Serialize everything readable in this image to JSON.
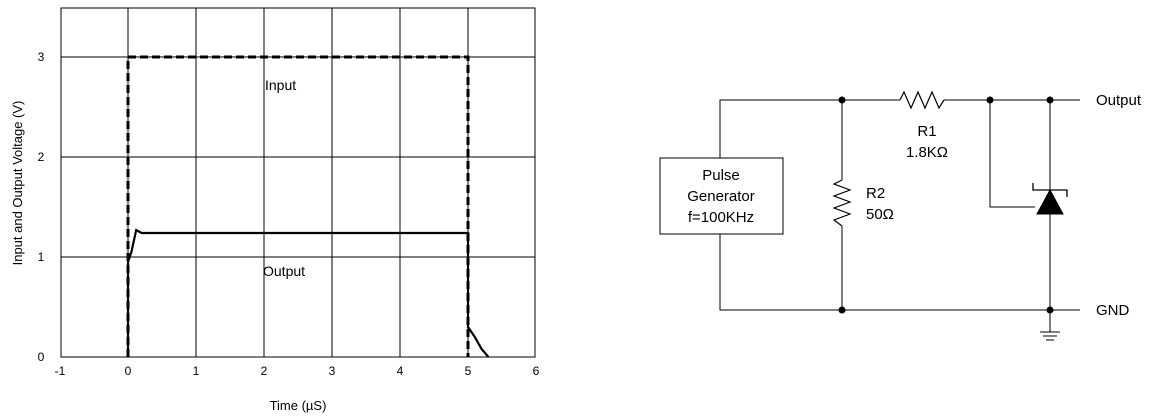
{
  "chart_data": {
    "type": "line",
    "title": "",
    "xlabel": "Time (µS)",
    "ylabel": "Input and Output Voltage (V)",
    "xlim": [
      -1,
      6
    ],
    "ylim": [
      0,
      3.5
    ],
    "xticks": [
      "-1",
      "0",
      "1",
      "2",
      "3",
      "4",
      "5",
      "6"
    ],
    "yticks": [
      "0",
      "1",
      "2",
      "3"
    ],
    "grid": true,
    "series": [
      {
        "name": "Input",
        "style": "dashed",
        "x": [
          0,
          0,
          5,
          5
        ],
        "y": [
          0,
          3,
          3,
          0
        ]
      },
      {
        "name": "Output",
        "style": "solid",
        "x": [
          0,
          0,
          0.05,
          0.12,
          0.2,
          5,
          5,
          5.1,
          5.2,
          5.3
        ],
        "y": [
          0,
          0.95,
          1.05,
          1.27,
          1.24,
          1.24,
          0.3,
          0.2,
          0.08,
          0
        ]
      }
    ]
  },
  "circuit": {
    "generator": [
      "Pulse",
      "Generator",
      "f=100KHz"
    ],
    "r1_name": "R1",
    "r1_value": "1.8KΩ",
    "r2_name": "R2",
    "r2_value": "50Ω",
    "output_label": "Output",
    "gnd_label": "GND"
  }
}
